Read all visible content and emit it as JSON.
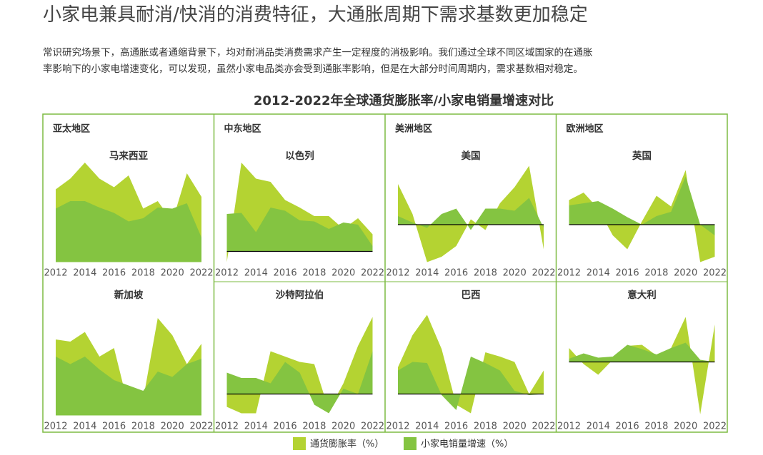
{
  "header": {
    "title": "小家电兼具耐消/快消的消费特征，大通胀周期下需求基数更加稳定",
    "paragraph": [
      "常识研究场景下，高通胀或者通缩背景下，均对耐消品类消费需求产生一定程度的消极影响。我们通过全球不同区域国家的在通胀",
      "率影响下的小家电增速变化，可以发现，虽然小家电品类亦会受到通胀率影响，但是在大部分时间周期内，需求基数相对稳定。"
    ],
    "chart_title": "2012-2022年全球通货膨胀率/小家电销量增速对比",
    "regions": [
      "亚太地区",
      "中东地区",
      "美洲地区",
      "欧洲地区"
    ]
  },
  "chart_data": [
    {
      "type": "area",
      "title": "马来西亚",
      "x": [
        2012,
        2013,
        2014,
        2015,
        2016,
        2017,
        2018,
        2019,
        2020,
        2021,
        2022
      ],
      "xlim": [
        2012,
        2022
      ],
      "xticks": [
        2012,
        2014,
        2016,
        2018,
        2020,
        2022
      ],
      "ylim": [
        -0.5,
        9.5
      ],
      "zero_line": false,
      "series": [
        {
          "name": "通货膨胀率（%）",
          "color": "#b4d332",
          "values": [
            6.8,
            7.8,
            9.3,
            7.8,
            7.0,
            8.1,
            5.0,
            5.7,
            3.8,
            8.3,
            6.1
          ]
        },
        {
          "name": "小家电销量增速（%）",
          "color": "#84c441",
          "values": [
            5.0,
            5.7,
            5.7,
            5.1,
            4.6,
            3.8,
            4.1,
            5.1,
            5.0,
            5.5,
            2.3
          ]
        }
      ]
    },
    {
      "type": "area",
      "title": "以色列",
      "x": [
        2012,
        2013,
        2014,
        2015,
        2016,
        2017,
        2018,
        2019,
        2020,
        2021,
        2022
      ],
      "xlim": [
        2012,
        2022
      ],
      "xticks": [
        2012,
        2014,
        2016,
        2018,
        2020,
        2022
      ],
      "ylim": [
        -1.5,
        8.5
      ],
      "zero_line": true,
      "series": [
        {
          "name": "通货膨胀率（%）",
          "color": "#b4d332",
          "values": [
            -1.0,
            8.3,
            6.8,
            6.5,
            4.8,
            4.1,
            3.3,
            3.3,
            2.1,
            3.1,
            1.6
          ]
        },
        {
          "name": "小家电销量增速（%）",
          "color": "#84c441",
          "values": [
            3.5,
            3.6,
            1.8,
            4.1,
            3.8,
            2.9,
            2.8,
            2.1,
            2.7,
            2.5,
            0.5
          ]
        }
      ]
    },
    {
      "type": "area",
      "title": "美国",
      "x": [
        2012,
        2013,
        2014,
        2015,
        2016,
        2017,
        2018,
        2019,
        2020,
        2021,
        2022
      ],
      "xlim": [
        2012,
        2022
      ],
      "xticks": [
        2012,
        2014,
        2016,
        2018,
        2020,
        2022
      ],
      "ylim": [
        -4,
        6
      ],
      "zero_line": true,
      "series": [
        {
          "name": "通货膨胀率（%）",
          "color": "#b4d332",
          "values": [
            3.8,
            1.0,
            -3.5,
            -3.0,
            -2.0,
            0.5,
            -0.5,
            2.0,
            3.5,
            5.5,
            -2.3
          ]
        },
        {
          "name": "小家电销量增速（%）",
          "color": "#84c441",
          "values": [
            0.8,
            0.2,
            -0.3,
            1.0,
            1.5,
            -0.5,
            1.5,
            1.5,
            1.3,
            2.5,
            -0.3
          ]
        }
      ]
    },
    {
      "type": "area",
      "title": "英国",
      "x": [
        2012,
        2013,
        2014,
        2015,
        2016,
        2017,
        2018,
        2019,
        2020,
        2021,
        2022
      ],
      "xlim": [
        2012,
        2022
      ],
      "xticks": [
        2012,
        2014,
        2016,
        2018,
        2020,
        2022
      ],
      "ylim": [
        -4,
        6
      ],
      "zero_line": true,
      "series": [
        {
          "name": "通货膨胀率（%）",
          "color": "#b4d332",
          "values": [
            2.3,
            3.0,
            1.5,
            -1.0,
            -2.3,
            0.3,
            2.7,
            1.7,
            5.1,
            -3.5,
            -3.0
          ]
        },
        {
          "name": "小家电销量增速（%）",
          "color": "#84c441",
          "values": [
            1.8,
            2.0,
            2.2,
            1.5,
            0.7,
            0.0,
            0.8,
            1.2,
            4.5,
            0.0,
            -1.0
          ]
        }
      ]
    },
    {
      "type": "area",
      "title": "新加坡",
      "x": [
        2012,
        2013,
        2014,
        2015,
        2016,
        2017,
        2018,
        2019,
        2020,
        2021,
        2022
      ],
      "xlim": [
        2012,
        2022
      ],
      "xticks": [
        2012,
        2014,
        2016,
        2018,
        2020,
        2022
      ],
      "ylim": [
        -0.5,
        9.5
      ],
      "zero_line": false,
      "series": [
        {
          "name": "通货膨胀率（%）",
          "color": "#b4d332",
          "values": [
            7.1,
            6.9,
            7.8,
            5.5,
            6.3,
            0.8,
            1.5,
            9.1,
            7.5,
            4.8,
            6.7
          ]
        },
        {
          "name": "小家电销量增速（%）",
          "color": "#84c441",
          "values": [
            5.5,
            4.8,
            5.5,
            4.3,
            3.3,
            2.8,
            2.3,
            4.1,
            3.6,
            4.8,
            5.3
          ]
        }
      ]
    },
    {
      "type": "area",
      "title": "沙特阿拉伯",
      "x": [
        2012,
        2013,
        2014,
        2015,
        2016,
        2017,
        2018,
        2019,
        2020,
        2021,
        2022
      ],
      "xlim": [
        2012,
        2022
      ],
      "xticks": [
        2012,
        2014,
        2016,
        2018,
        2020,
        2022
      ],
      "ylim": [
        -2.5,
        7.5
      ],
      "zero_line": true,
      "series": [
        {
          "name": "通货膨胀率（%）",
          "color": "#b4d332",
          "values": [
            -1.2,
            -1.8,
            -1.8,
            4.0,
            3.5,
            3.0,
            2.8,
            -1.5,
            1.0,
            4.5,
            7.2
          ]
        },
        {
          "name": "小家电销量增速（%）",
          "color": "#84c441",
          "values": [
            2.0,
            1.5,
            1.5,
            1.0,
            3.0,
            2.0,
            -1.0,
            -1.8,
            0.5,
            0.0,
            4.0
          ]
        }
      ]
    },
    {
      "type": "area",
      "title": "巴西",
      "x": [
        2012,
        2013,
        2014,
        2015,
        2016,
        2017,
        2018,
        2019,
        2020,
        2021,
        2022
      ],
      "xlim": [
        2012,
        2022
      ],
      "xticks": [
        2012,
        2014,
        2016,
        2018,
        2020,
        2022
      ],
      "ylim": [
        -2.5,
        7.5
      ],
      "zero_line": true,
      "series": [
        {
          "name": "通货膨胀率（%）",
          "color": "#b4d332",
          "values": [
            2.5,
            5.5,
            7.4,
            4.2,
            -1.0,
            -1.8,
            3.9,
            3.5,
            3.0,
            0.0,
            2.2
          ]
        },
        {
          "name": "小家电销量增速（%）",
          "color": "#84c441",
          "values": [
            2.2,
            3.0,
            2.9,
            -0.1,
            -1.5,
            3.5,
            2.9,
            2.2,
            0.3,
            -0.1,
            0.0
          ]
        }
      ]
    },
    {
      "type": "area",
      "title": "意大利",
      "x": [
        2012,
        2013,
        2014,
        2015,
        2016,
        2017,
        2018,
        2019,
        2020,
        2021,
        2022
      ],
      "xlim": [
        2012,
        2022
      ],
      "xticks": [
        2012,
        2014,
        2016,
        2018,
        2020,
        2022
      ],
      "ylim": [
        -5.5,
        4.5
      ],
      "zero_line": true,
      "series": [
        {
          "name": "通货膨胀率（%）",
          "color": "#b4d332",
          "values": [
            1.3,
            -0.2,
            -1.2,
            0.2,
            1.5,
            1.6,
            0.6,
            1.3,
            4.2,
            -4.9,
            3.5
          ]
        },
        {
          "name": "小家电销量增速（%）",
          "color": "#84c441",
          "values": [
            0.3,
            0.8,
            0.4,
            0.5,
            1.6,
            1.2,
            0.7,
            1.3,
            1.8,
            0.2,
            0.0
          ]
        }
      ]
    }
  ]
}
